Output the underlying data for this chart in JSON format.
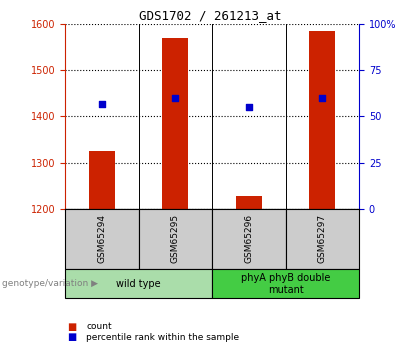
{
  "title": "GDS1702 / 261213_at",
  "samples": [
    "GSM65294",
    "GSM65295",
    "GSM65296",
    "GSM65297"
  ],
  "counts": [
    1325,
    1570,
    1228,
    1585
  ],
  "percentiles": [
    57,
    60,
    55,
    60
  ],
  "ylim_left": [
    1200,
    1600
  ],
  "ylim_right": [
    0,
    100
  ],
  "yticks_left": [
    1200,
    1300,
    1400,
    1500,
    1600
  ],
  "yticks_right": [
    0,
    25,
    50,
    75,
    100
  ],
  "ytick_labels_right": [
    "0",
    "25",
    "50",
    "75",
    "100%"
  ],
  "bar_color": "#cc2200",
  "dot_color": "#0000cc",
  "bar_width": 0.35,
  "groups": [
    {
      "label": "wild type",
      "samples": [
        0,
        1
      ],
      "color": "#aaddaa"
    },
    {
      "label": "phyA phyB double\nmutant",
      "samples": [
        2,
        3
      ],
      "color": "#44cc44"
    }
  ],
  "genotype_label": "genotype/variation",
  "left_axis_color": "#cc2200",
  "right_axis_color": "#0000cc",
  "bg_plot": "#ffffff",
  "bg_table_sample": "#cccccc",
  "bg_group_wt": "#aaddaa",
  "bg_group_mut": "#44cc44"
}
